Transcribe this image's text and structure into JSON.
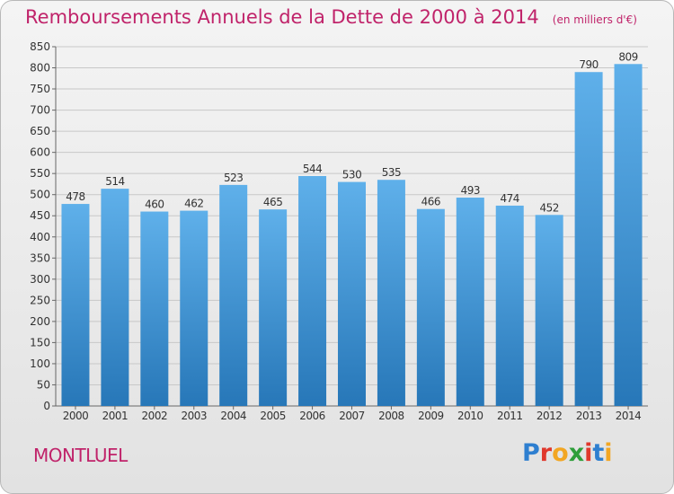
{
  "title": "Remboursements Annuels de la Dette de 2000 à 2014",
  "unit_note": "(en milliers d'€)",
  "commune": "MONTLUEL",
  "logo": {
    "letters": [
      "P",
      "r",
      "o",
      "x",
      "i",
      "t",
      "i"
    ],
    "colors": [
      "#2e7fd0",
      "#e0382c",
      "#f2a623",
      "#2e9e3a",
      "#e0382c",
      "#2e7fd0",
      "#f2a623"
    ]
  },
  "colors": {
    "bar_light": "#5fb0ea",
    "bar_dark": "#2777b8",
    "title": "#c0236a",
    "grid": "#c8c8c8"
  },
  "chart_data": {
    "type": "bar",
    "title": "Remboursements Annuels de la Dette de 2000 à 2014",
    "xlabel": "",
    "ylabel": "",
    "categories": [
      "2000",
      "2001",
      "2002",
      "2003",
      "2004",
      "2005",
      "2006",
      "2007",
      "2008",
      "2009",
      "2010",
      "2011",
      "2012",
      "2013",
      "2014"
    ],
    "values": [
      478,
      514,
      460,
      462,
      523,
      465,
      544,
      530,
      535,
      466,
      493,
      474,
      452,
      790,
      809
    ],
    "ylim": [
      0,
      850
    ],
    "yticks": [
      0,
      50,
      100,
      150,
      200,
      250,
      300,
      350,
      400,
      450,
      500,
      550,
      600,
      650,
      700,
      750,
      800,
      850
    ],
    "grid": true,
    "data_labels": true
  }
}
